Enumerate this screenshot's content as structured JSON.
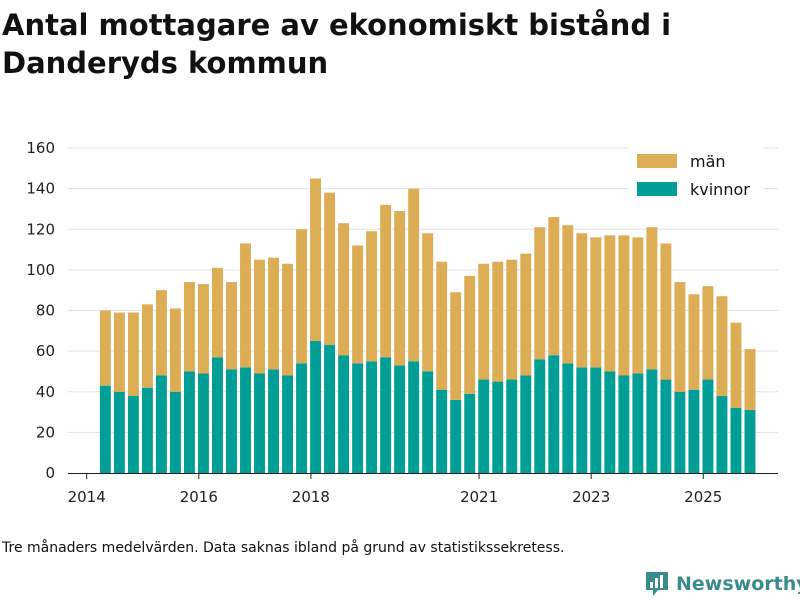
{
  "title": "Antal mottagare av ekonomiskt bistånd i Danderyds kommun",
  "footnote": "Tre månaders medelvärden. Data saknas ibland på grund av statistikssekretess.",
  "brand": {
    "name": "Newsworthy"
  },
  "chart_data": {
    "type": "bar",
    "stacked": true,
    "title": "Antal mottagare av ekonomiskt bistånd i Danderyds kommun",
    "xlabel": "",
    "ylabel": "",
    "ylim": [
      0,
      160
    ],
    "yticks": [
      0,
      20,
      40,
      60,
      80,
      100,
      120,
      140,
      160
    ],
    "xlim": [
      "2013-09",
      "2026-05"
    ],
    "xticks": [
      {
        "label": "2014",
        "date": "2014-01"
      },
      {
        "label": "2016",
        "date": "2016-01"
      },
      {
        "label": "2018",
        "date": "2018-01"
      },
      {
        "label": "2021",
        "date": "2021-01"
      },
      {
        "label": "2023",
        "date": "2023-01"
      },
      {
        "label": "2025",
        "date": "2025-01"
      }
    ],
    "grid": "horizontal",
    "legend": "top-right",
    "periods": [
      "2014-04",
      "2014-07",
      "2014-10",
      "2015-01",
      "2015-04",
      "2015-07",
      "2015-10",
      "2016-01",
      "2016-04",
      "2016-07",
      "2016-10",
      "2017-01",
      "2017-04",
      "2017-07",
      "2017-10",
      "2018-01",
      "2018-04",
      "2018-07",
      "2018-10",
      "2019-01",
      "2019-04",
      "2019-07",
      "2019-10",
      "2020-01",
      "2020-04",
      "2020-07",
      "2020-10",
      "2021-01",
      "2021-04",
      "2021-07",
      "2021-10",
      "2022-01",
      "2022-04",
      "2022-07",
      "2022-10",
      "2023-01",
      "2023-04",
      "2023-07",
      "2023-10",
      "2024-01",
      "2024-04",
      "2024-07",
      "2024-10",
      "2025-01",
      "2025-04",
      "2025-07",
      "2025-10"
    ],
    "series": [
      {
        "name": "kvinnor",
        "color": "#009e96",
        "values": [
          43,
          40,
          38,
          42,
          48,
          40,
          50,
          49,
          57,
          51,
          52,
          49,
          51,
          48,
          54,
          65,
          63,
          58,
          54,
          55,
          57,
          53,
          55,
          50,
          41,
          36,
          39,
          46,
          45,
          46,
          48,
          56,
          58,
          54,
          52,
          52,
          50,
          48,
          49,
          51,
          46,
          40,
          41,
          46,
          38,
          32,
          31
        ]
      },
      {
        "name": "män",
        "color": "#dcad55",
        "values": [
          37,
          39,
          41,
          41,
          42,
          41,
          44,
          44,
          44,
          43,
          61,
          56,
          55,
          55,
          66,
          80,
          75,
          65,
          58,
          64,
          75,
          76,
          85,
          68,
          63,
          53,
          58,
          57,
          59,
          59,
          60,
          65,
          68,
          68,
          66,
          64,
          67,
          69,
          67,
          70,
          67,
          54,
          47,
          46,
          49,
          42,
          30
        ]
      }
    ]
  }
}
